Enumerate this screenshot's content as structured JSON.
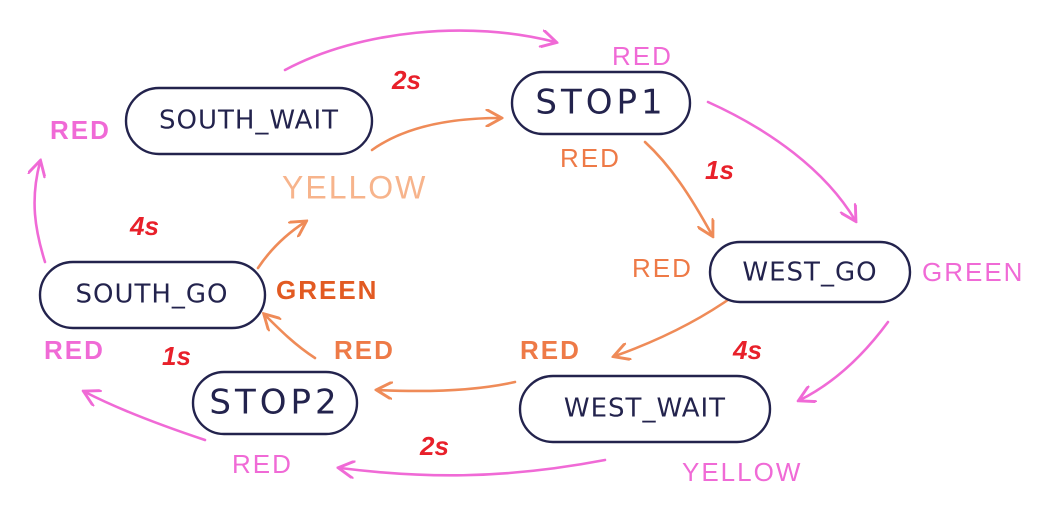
{
  "states": {
    "south_wait": "SOUTH_WAIT",
    "stop1": "STOP1",
    "west_go": "WEST_GO",
    "west_wait": "WEST_WAIT",
    "stop2": "STOP2",
    "south_go": "SOUTH_GO"
  },
  "times": {
    "south_wait_to_stop1": "2s",
    "stop1_to_west_go": "1s",
    "west_go_to_west_wait": "4s",
    "west_wait_to_stop2": "2s",
    "stop2_to_south_go": "1s",
    "south_go_to_south_wait": "4s"
  },
  "outer_lights": {
    "stop1": "RED",
    "west_go": "GREEN",
    "west_wait": "YELLOW",
    "stop2": "RED",
    "south_go": "RED",
    "south_wait": "RED"
  },
  "inner_lights": {
    "stop1": "RED",
    "west_go": "RED",
    "west_wait": "RED",
    "stop2": "RED",
    "south_go": "GREEN",
    "south_wait": "YELLOW"
  },
  "colors": {
    "outer": "#f06ad6",
    "inner": "#ef8b58",
    "time": "#e8202a",
    "state_outline": "#23234d"
  }
}
